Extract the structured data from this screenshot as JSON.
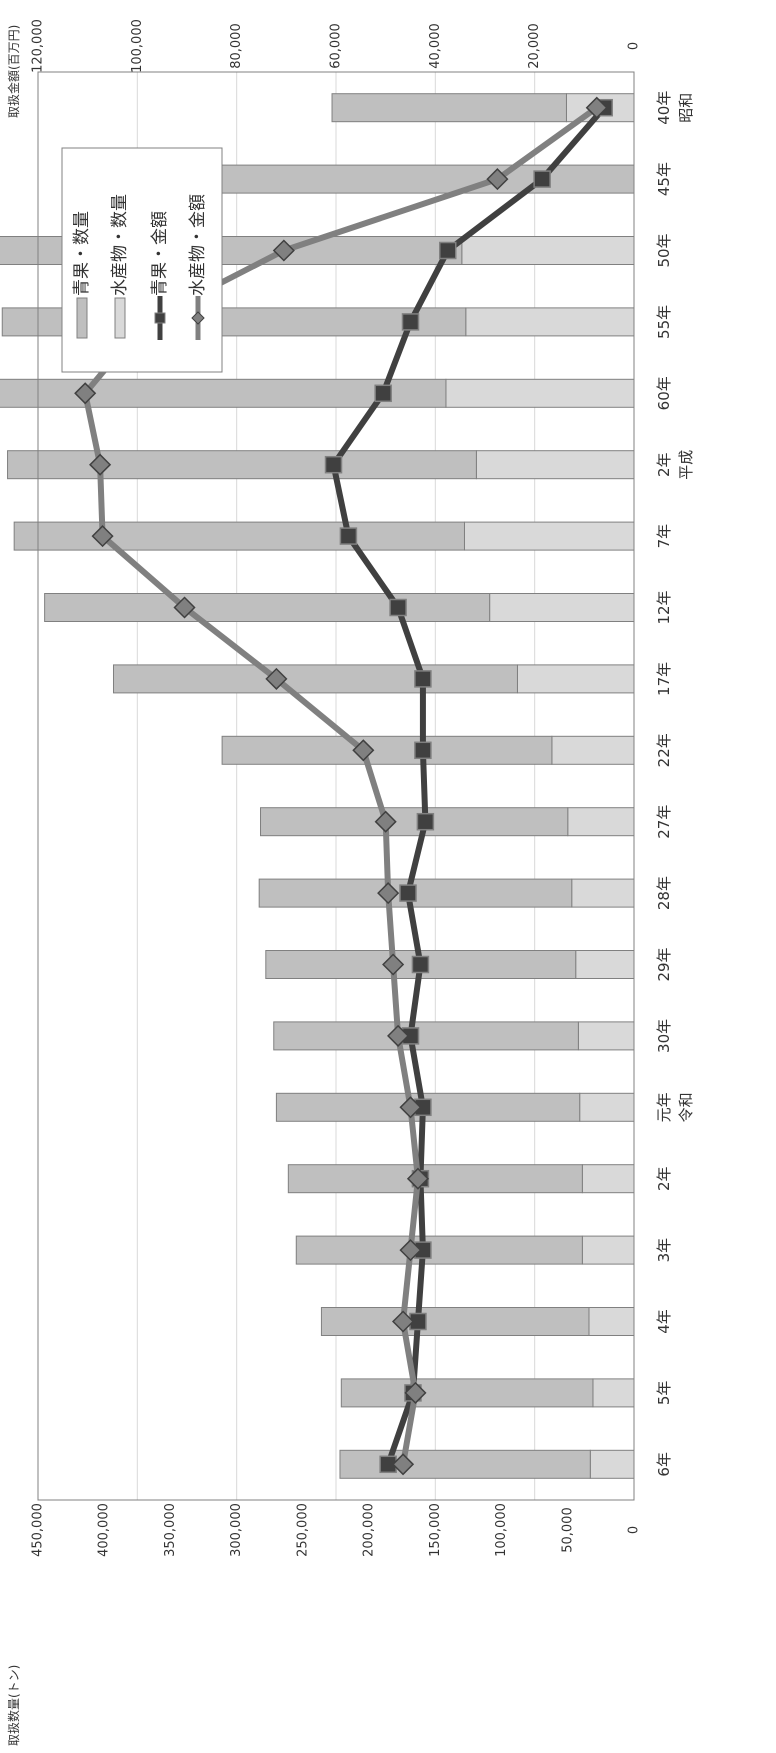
{
  "chart_data": {
    "type": "bar+line",
    "orientation": "rotated-90-clockwise",
    "categories": [
      "40年",
      "45年",
      "50年",
      "55年",
      "60年",
      "2年",
      "7年",
      "12年",
      "17年",
      "22年",
      "27年",
      "28年",
      "29年",
      "30年",
      "元年",
      "2年",
      "3年",
      "4年",
      "5年",
      "6年"
    ],
    "era_labels": [
      {
        "label": "昭和",
        "category_index": 0
      },
      {
        "label": "平成",
        "category_index": 5
      },
      {
        "label": "令和",
        "category_index": 14
      }
    ],
    "left_axis": {
      "label": "取扱数量(トン)",
      "min": 0,
      "max": 450000,
      "step": 50000,
      "ticks": [
        "0",
        "50,000",
        "100,000",
        "150,000",
        "200,000",
        "250,000",
        "300,000",
        "350,000",
        "400,000",
        "450,000"
      ]
    },
    "right_axis": {
      "label": "取扱金額(百万円)",
      "min": 0,
      "max": 120000,
      "step": 20000,
      "ticks": [
        "0",
        "20,000",
        "40,000",
        "60,000",
        "80,000",
        "100,000",
        "120,000"
      ]
    },
    "grid": true,
    "legend_placement": "top-right",
    "series": [
      {
        "name": "青果・数量",
        "kind": "stacked-bar",
        "axis": "left",
        "color": "#bfbfbf",
        "values": [
          177000,
          317000,
          399000,
          350000,
          368000,
          354000,
          340000,
          336000,
          305000,
          249000,
          232000,
          236000,
          234000,
          230000,
          229000,
          222000,
          216000,
          202000,
          190000,
          189000
        ]
      },
      {
        "name": "水産物・数量",
        "kind": "stacked-bar",
        "axis": "left",
        "color": "#d9d9d9",
        "values": [
          51000,
          0,
          130000,
          127000,
          142000,
          119000,
          128000,
          109000,
          88000,
          62000,
          50000,
          47000,
          44000,
          42000,
          41000,
          39000,
          39000,
          34000,
          31000,
          33000
        ]
      },
      {
        "name": "青果・金額",
        "kind": "line",
        "axis": "right",
        "color": "#404040",
        "marker": "square",
        "values": [
          6000,
          18500,
          37500,
          45000,
          50500,
          60500,
          57500,
          47500,
          42500,
          42500,
          42000,
          45500,
          43000,
          45000,
          42500,
          43000,
          42500,
          43500,
          44500,
          49500
        ]
      },
      {
        "name": "水産物・金額",
        "kind": "line",
        "axis": "right",
        "color": "#808080",
        "marker": "diamond",
        "values": [
          7500,
          27500,
          70500,
          98500,
          110500,
          107500,
          107000,
          90500,
          72000,
          54500,
          50000,
          49500,
          48500,
          47500,
          45000,
          43500,
          45000,
          46500,
          44000,
          46500
        ]
      }
    ]
  }
}
